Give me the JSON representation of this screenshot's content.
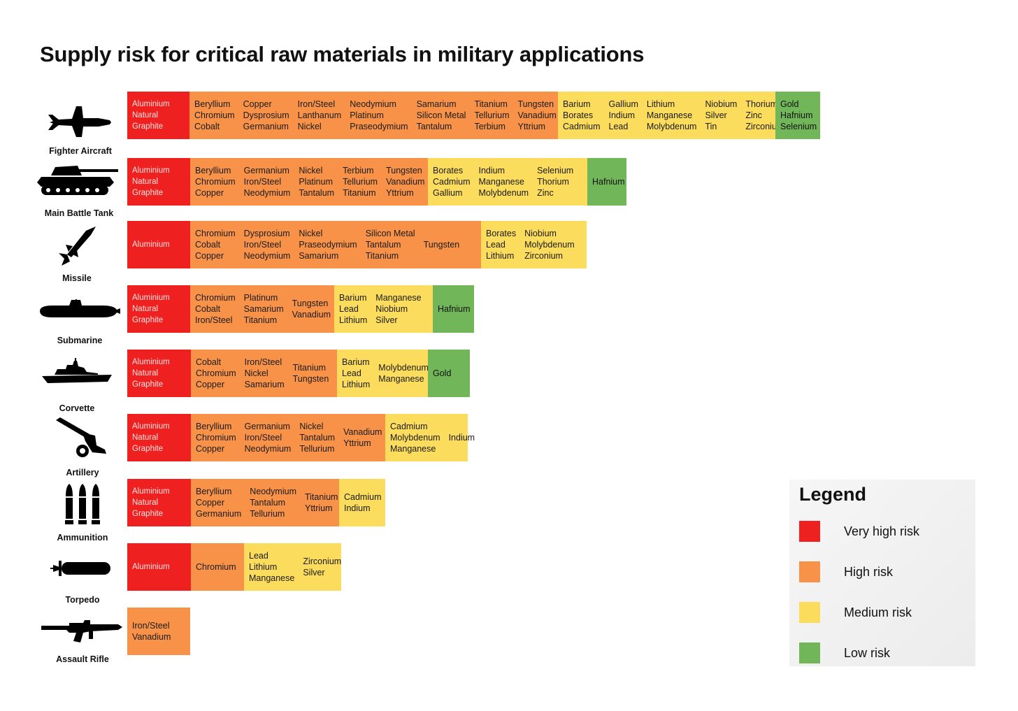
{
  "title": "Supply risk for critical raw materials in military applications",
  "colors": {
    "very_high": "#ee2020",
    "high": "#f79248",
    "medium": "#fbdc5c",
    "low": "#72b65a"
  },
  "applications": [
    {
      "name": "Fighter Aircraft",
      "icon": "fighter-jet-icon",
      "segments": [
        {
          "risk": "very_high",
          "columns": [
            [
              "Aluminium",
              "Natural",
              "Graphite"
            ]
          ]
        },
        {
          "risk": "high",
          "columns": [
            [
              "Beryllium",
              "Chromium",
              "Cobalt"
            ],
            [
              "Copper",
              "Dysprosium",
              "Germanium"
            ],
            [
              "Iron/Steel",
              "Lanthanum",
              "Nickel"
            ],
            [
              "Neodymium",
              "Platinum",
              "Praseodymium"
            ],
            [
              "Samarium",
              "Silicon Metal",
              "Tantalum"
            ],
            [
              "Titanium",
              "Tellurium",
              "Terbium"
            ],
            [
              "Tungsten",
              "Vanadium",
              "Yttrium"
            ]
          ]
        },
        {
          "risk": "medium",
          "columns": [
            [
              "Barium",
              "Borates",
              "Cadmium"
            ],
            [
              "Gallium",
              "Indium",
              "Lead"
            ],
            [
              "Lithium",
              "Manganese",
              "Molybdenum"
            ],
            [
              "Niobium",
              "Silver",
              "Tin"
            ],
            [
              "Thorium",
              "Zinc",
              "Zirconium"
            ]
          ]
        },
        {
          "risk": "low",
          "columns": [
            [
              "Gold",
              "Hafnium",
              "Selenium"
            ]
          ]
        }
      ]
    },
    {
      "name": "Main Battle Tank",
      "icon": "tank-icon",
      "segments": [
        {
          "risk": "very_high",
          "columns": [
            [
              "Aluminium",
              "Natural",
              "Graphite"
            ]
          ]
        },
        {
          "risk": "high",
          "columns": [
            [
              "Beryllium",
              "Chromium",
              "Copper"
            ],
            [
              "Germanium",
              "Iron/Steel",
              "Neodymium"
            ],
            [
              "Nickel",
              "Platinum",
              "Tantalum"
            ],
            [
              "Terbium",
              "Tellurium",
              "Titanium"
            ],
            [
              "Tungsten",
              "Vanadium",
              "Yttrium"
            ]
          ]
        },
        {
          "risk": "medium",
          "columns": [
            [
              "Borates",
              "Cadmium",
              "Gallium"
            ],
            [
              "Indium",
              "Manganese",
              "Molybdenum"
            ],
            [
              "Selenium",
              "Thorium",
              "Zinc"
            ]
          ]
        },
        {
          "risk": "low",
          "columns": [
            [
              "Hafnium"
            ]
          ]
        }
      ]
    },
    {
      "name": "Missile",
      "icon": "missile-icon",
      "segments": [
        {
          "risk": "very_high",
          "columns": [
            [
              "Aluminium"
            ]
          ]
        },
        {
          "risk": "high",
          "columns": [
            [
              "Chromium",
              "Cobalt",
              "Copper"
            ],
            [
              "Dysprosium",
              "Iron/Steel",
              "Neodymium"
            ],
            [
              "Nickel",
              "Praseodymium",
              "Samarium"
            ],
            [
              "Silicon Metal",
              "Tantalum",
              "Titanium"
            ],
            [
              "Tungsten"
            ]
          ]
        },
        {
          "risk": "medium",
          "columns": [
            [
              "Borates",
              "Lead",
              "Lithium"
            ],
            [
              "Niobium",
              "Molybdenum",
              "Zirconium"
            ]
          ]
        }
      ]
    },
    {
      "name": "Submarine",
      "icon": "submarine-icon",
      "segments": [
        {
          "risk": "very_high",
          "columns": [
            [
              "Aluminium",
              "Natural",
              "Graphite"
            ]
          ]
        },
        {
          "risk": "high",
          "columns": [
            [
              "Chromium",
              "Cobalt",
              "Iron/Steel"
            ],
            [
              "Platinum",
              "Samarium",
              "Titanium"
            ],
            [
              "Tungsten",
              "Vanadium"
            ]
          ]
        },
        {
          "risk": "medium",
          "columns": [
            [
              "Barium",
              "Lead",
              "Lithium"
            ],
            [
              "Manganese",
              "Niobium",
              "Silver"
            ]
          ]
        },
        {
          "risk": "low",
          "columns": [
            [
              "Hafnium"
            ]
          ]
        }
      ]
    },
    {
      "name": "Corvette",
      "icon": "corvette-ship-icon",
      "segments": [
        {
          "risk": "very_high",
          "columns": [
            [
              "Aluminium",
              "Natural",
              "Graphite"
            ]
          ]
        },
        {
          "risk": "high",
          "columns": [
            [
              "Cobalt",
              "Chromium",
              "Copper"
            ],
            [
              "Iron/Steel",
              "Nickel",
              "Samarium"
            ],
            [
              "Titanium",
              "Tungsten"
            ]
          ]
        },
        {
          "risk": "medium",
          "columns": [
            [
              "Barium",
              "Lead",
              "Lithium"
            ],
            [
              "Molybdenum",
              "Manganese"
            ]
          ]
        },
        {
          "risk": "low",
          "columns": [
            [
              "Gold"
            ]
          ]
        }
      ]
    },
    {
      "name": "Artillery",
      "icon": "artillery-icon",
      "segments": [
        {
          "risk": "very_high",
          "columns": [
            [
              "Aluminium",
              "Natural",
              "Graphite"
            ]
          ]
        },
        {
          "risk": "high",
          "columns": [
            [
              "Beryllium",
              "Chromium",
              "Copper"
            ],
            [
              "Germanium",
              "Iron/Steel",
              "Neodymium"
            ],
            [
              "Nickel",
              "Tantalum",
              "Tellurium"
            ],
            [
              "Vanadium",
              "Yttrium"
            ]
          ]
        },
        {
          "risk": "medium",
          "columns": [
            [
              "Cadmium",
              "Molybdenum",
              "Manganese"
            ],
            [
              "Indium"
            ]
          ]
        }
      ]
    },
    {
      "name": "Ammunition",
      "icon": "ammunition-icon",
      "segments": [
        {
          "risk": "very_high",
          "columns": [
            [
              "Aluminium",
              "Natural",
              "Graphite"
            ]
          ]
        },
        {
          "risk": "high",
          "columns": [
            [
              "Beryllium",
              "Copper",
              "Germanium"
            ],
            [
              "Neodymium",
              "Tantalum",
              "Tellurium"
            ],
            [
              "Titanium",
              "Yttrium"
            ]
          ]
        },
        {
          "risk": "medium",
          "columns": [
            [
              "Cadmium",
              "Indium"
            ]
          ]
        }
      ]
    },
    {
      "name": "Torpedo",
      "icon": "torpedo-icon",
      "segments": [
        {
          "risk": "very_high",
          "columns": [
            [
              "Aluminium"
            ]
          ]
        },
        {
          "risk": "high",
          "columns": [
            [
              "Chromium"
            ]
          ]
        },
        {
          "risk": "medium",
          "columns": [
            [
              "Lead",
              "Lithium",
              "Manganese"
            ],
            [
              "Zirconium",
              "Silver"
            ]
          ]
        }
      ]
    },
    {
      "name": "Assault Rifle",
      "icon": "assault-rifle-icon",
      "segments": [
        {
          "risk": "high",
          "columns": [
            [
              "Iron/Steel",
              "Vanadium"
            ]
          ]
        }
      ]
    }
  ],
  "legend": {
    "title": "Legend",
    "items": [
      {
        "label": "Very high risk",
        "color": "#ee2020"
      },
      {
        "label": "High risk",
        "color": "#f79248"
      },
      {
        "label": "Medium risk",
        "color": "#fbdc5c"
      },
      {
        "label": "Low risk",
        "color": "#72b65a"
      }
    ]
  }
}
